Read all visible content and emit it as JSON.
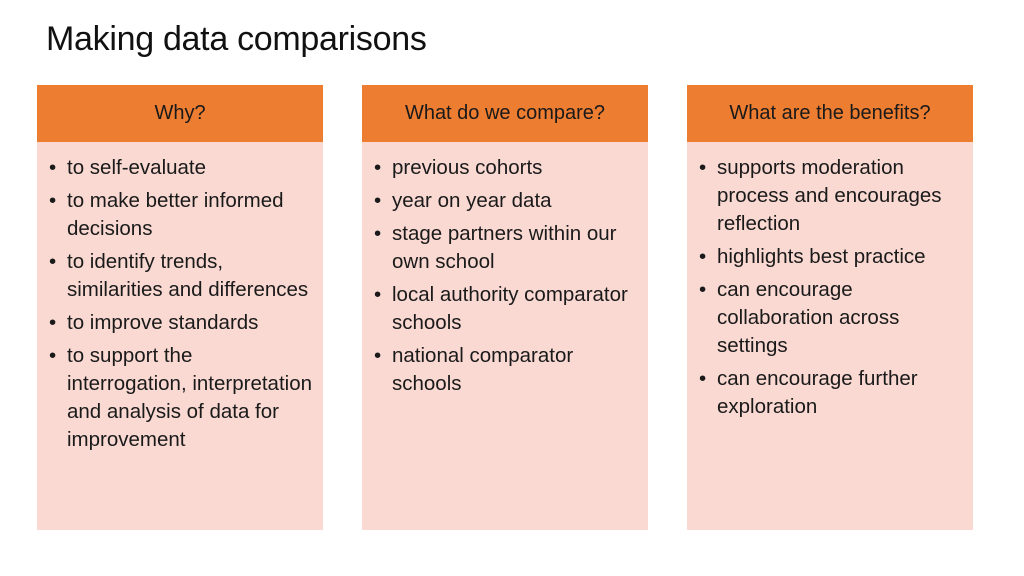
{
  "title": "Making data comparisons",
  "columns": [
    {
      "header": "Why?",
      "items": [
        "to self-evaluate",
        "to make better informed decisions",
        "to identify trends, similarities and differences",
        "to improve standards",
        "to support the interrogation, interpretation and analysis of data for improvement"
      ]
    },
    {
      "header": "What do we compare?",
      "items": [
        "previous cohorts",
        "year on year data",
        "stage partners within our own school",
        "local authority comparator schools",
        "national comparator schools"
      ]
    },
    {
      "header": "What are the benefits?",
      "items": [
        "supports moderation process and encourages reflection",
        "highlights best practice",
        "can encourage collaboration across settings",
        "can encourage further exploration"
      ]
    }
  ],
  "colors": {
    "header_bg": "#ed7d31",
    "body_bg": "#f9d9d2"
  }
}
